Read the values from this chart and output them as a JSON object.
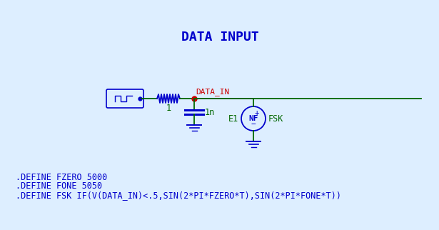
{
  "title": "DATA INPUT",
  "title_color": "#0000CC",
  "title_fontsize": 13,
  "bg_color": "#DDEEFF",
  "define_lines": [
    ".DEFINE FZERO 5000",
    ".DEFINE FONE 5050",
    ".DEFINE FSK IF(V(DATA_IN)<.5,SIN(2*PI*FZERO*T),SIN(2*PI*FONE*T))"
  ],
  "define_color": "#0000CC",
  "define_fontsize": 8.5,
  "node_label": "DATA_IN",
  "node_label_color": "#CC0000",
  "resistor_label": "1",
  "resistor_label_color": "#006600",
  "capacitor_label": "1n",
  "capacitor_label_color": "#006600",
  "source_label": "E1",
  "source_label_color": "#006600",
  "nf_label": "NF",
  "nf_label_color": "#0000CC",
  "fsk_label": "FSK",
  "fsk_label_color": "#006600",
  "wire_color": "#006600",
  "component_color": "#0000CC",
  "node_color": "#CC0000",
  "plus_color": "#0000CC",
  "minus_color": "#0000CC"
}
